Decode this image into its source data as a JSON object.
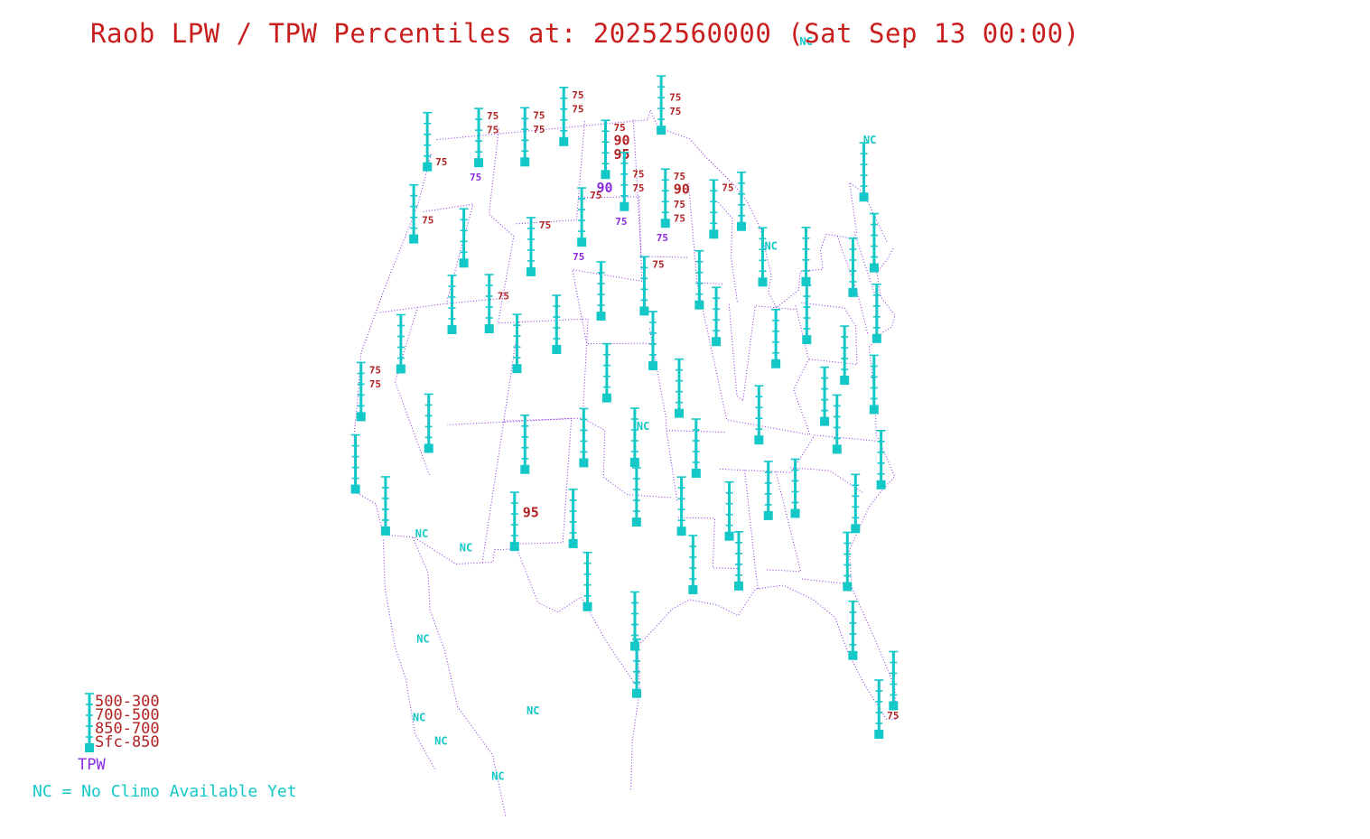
{
  "title": "Raob LPW / TPW Percentiles at: 20252560000 (Sat Sep 13 00:00)",
  "colors": {
    "title": "#c81e1e",
    "station": "#14c8c8",
    "pct": "#b22222",
    "tpw": "#8a2be2",
    "boundary": "#8a2be2"
  },
  "legend": {
    "layers": [
      "500-300",
      "700-500",
      "850-700",
      "Sfc-850"
    ],
    "tpw": "TPW",
    "note": "NC = No Climo Available Yet"
  },
  "stations": [
    {
      "name": "station-quillayute",
      "lat": 47.9,
      "lon": -124.6,
      "labels": [
        {
          "layer": 3,
          "text": "75"
        }
      ]
    },
    {
      "name": "station-salem",
      "lat": 44.9,
      "lon": -123.0,
      "labels": [
        {
          "layer": 2,
          "text": "75"
        }
      ]
    },
    {
      "name": "station-spokane",
      "lat": 47.7,
      "lon": -117.6,
      "labels": [
        {
          "layer": 0,
          "text": "75"
        },
        {
          "layer": 1,
          "text": "75"
        }
      ],
      "tpw": "75"
    },
    {
      "name": "station-boise",
      "lat": 43.6,
      "lon": -116.2,
      "labels": []
    },
    {
      "name": "station-reno",
      "lat": 39.5,
      "lon": -119.8,
      "labels": []
    },
    {
      "name": "station-oakland",
      "lat": 37.7,
      "lon": -122.2,
      "labels": [
        {
          "layer": 0,
          "text": "75"
        },
        {
          "layer": 1,
          "text": "75"
        }
      ]
    },
    {
      "name": "station-vandenberg",
      "lat": 34.7,
      "lon": -120.6,
      "labels": []
    },
    {
      "name": "station-las-vegas",
      "lat": 36.1,
      "lon": -115.2,
      "labels": []
    },
    {
      "name": "station-san-diego",
      "lat": 32.85,
      "lon": -117.1,
      "labels": []
    },
    {
      "name": "station-great-falls",
      "lat": 47.5,
      "lon": -111.4,
      "labels": [
        {
          "layer": 0,
          "text": "75"
        },
        {
          "layer": 1,
          "text": "75"
        }
      ]
    },
    {
      "name": "station-elko",
      "lat": 40.9,
      "lon": -115.7,
      "labels": []
    },
    {
      "name": "station-salt-lake",
      "lat": 40.8,
      "lon": -111.9,
      "labels": [
        {
          "layer": 1,
          "text": "75"
        }
      ]
    },
    {
      "name": "station-riverton",
      "lat": 43.0,
      "lon": -108.5,
      "labels": [
        {
          "layer": 0,
          "text": "75"
        }
      ]
    },
    {
      "name": "station-grand-junction",
      "lat": 39.1,
      "lon": -108.5,
      "labels": []
    },
    {
      "name": "station-glasgow",
      "lat": 48.2,
      "lon": -106.6,
      "labels": [
        {
          "layer": 0,
          "text": "75"
        },
        {
          "layer": 1,
          "text": "75"
        }
      ]
    },
    {
      "name": "station-bismarck",
      "lat": 46.8,
      "lon": -100.8,
      "labels": [
        {
          "layer": 0,
          "text": "75"
        },
        {
          "layer": 1,
          "text": "90",
          "big": true
        },
        {
          "layer": 2,
          "text": "95",
          "big": true
        }
      ],
      "tpw": "90",
      "tpwBig": true
    },
    {
      "name": "station-rapid-city",
      "lat": 44.1,
      "lon": -103.2,
      "labels": [
        {
          "layer": 0,
          "text": "75"
        }
      ],
      "tpw": "75"
    },
    {
      "name": "station-aberdeen",
      "lat": 45.5,
      "lon": -98.4,
      "labels": [
        {
          "layer": 1,
          "text": "75"
        },
        {
          "layer": 2,
          "text": "75"
        }
      ],
      "tpw": "75"
    },
    {
      "name": "station-international-falls",
      "lat": 48.6,
      "lon": -93.4,
      "labels": [
        {
          "layer": 1,
          "text": "75"
        },
        {
          "layer": 2,
          "text": "75"
        }
      ]
    },
    {
      "name": "station-chanhassen",
      "lat": 44.85,
      "lon": -93.6,
      "labels": [
        {
          "layer": 0,
          "text": "75"
        },
        {
          "layer": 1,
          "text": "90",
          "big": true
        },
        {
          "layer": 2,
          "text": "75"
        },
        {
          "layer": 3,
          "text": "75"
        }
      ],
      "tpw": "75"
    },
    {
      "name": "station-north-platte",
      "lat": 41.1,
      "lon": -100.7,
      "labels": []
    },
    {
      "name": "station-omaha",
      "lat": 41.3,
      "lon": -96.3,
      "labels": [
        {
          "layer": 0,
          "text": "75"
        }
      ]
    },
    {
      "name": "station-topeka",
      "lat": 39.1,
      "lon": -95.6,
      "labels": []
    },
    {
      "name": "station-dodge-city",
      "lat": 37.8,
      "lon": -99.9,
      "labels": []
    },
    {
      "name": "station-denver",
      "lat": 39.8,
      "lon": -104.9,
      "labels": []
    },
    {
      "name": "station-albuquerque",
      "lat": 35.0,
      "lon": -106.6,
      "labels": []
    },
    {
      "name": "station-amarillo",
      "lat": 35.2,
      "lon": -101.7,
      "labels": []
    },
    {
      "name": "station-norman",
      "lat": 35.2,
      "lon": -97.4,
      "labels": [],
      "nc": true
    },
    {
      "name": "station-santa-teresa",
      "lat": 31.9,
      "lon": -106.7,
      "labels": [
        {
          "layer": 1,
          "text": "95",
          "big": true
        }
      ]
    },
    {
      "name": "station-midland",
      "lat": 31.95,
      "lon": -102.2,
      "labels": []
    },
    {
      "name": "station-fort-worth",
      "lat": 32.8,
      "lon": -97.3,
      "labels": []
    },
    {
      "name": "station-del-rio",
      "lat": 29.4,
      "lon": -100.9,
      "labels": []
    },
    {
      "name": "station-corpus-christi",
      "lat": 27.8,
      "lon": -97.5,
      "labels": []
    },
    {
      "name": "station-brownsville",
      "lat": 25.9,
      "lon": -97.4,
      "labels": []
    },
    {
      "name": "station-shreveport",
      "lat": 32.45,
      "lon": -93.8,
      "labels": []
    },
    {
      "name": "station-lake-charles",
      "lat": 30.1,
      "lon": -93.2,
      "labels": []
    },
    {
      "name": "station-springfield",
      "lat": 37.2,
      "lon": -93.4,
      "labels": []
    },
    {
      "name": "station-little-rock",
      "lat": 34.8,
      "lon": -92.3,
      "labels": []
    },
    {
      "name": "station-jackson",
      "lat": 32.3,
      "lon": -90.1,
      "labels": []
    },
    {
      "name": "station-slidell",
      "lat": 30.3,
      "lon": -89.8,
      "labels": []
    },
    {
      "name": "station-davenport",
      "lat": 41.6,
      "lon": -90.6,
      "labels": []
    },
    {
      "name": "station-lincoln",
      "lat": 40.15,
      "lon": -89.3,
      "labels": []
    },
    {
      "name": "station-green-bay",
      "lat": 44.5,
      "lon": -88.1,
      "labels": [
        {
          "layer": 0,
          "text": "75"
        }
      ]
    },
    {
      "name": "station-gaylord",
      "lat": 44.9,
      "lon": -84.7,
      "labels": []
    },
    {
      "name": "station-detroit",
      "lat": 42.7,
      "lon": -83.5,
      "labels": [],
      "nc": true
    },
    {
      "name": "station-wilmington-oh",
      "lat": 39.4,
      "lon": -83.8,
      "labels": []
    },
    {
      "name": "station-nashville",
      "lat": 36.25,
      "lon": -86.6,
      "labels": []
    },
    {
      "name": "station-birmingham",
      "lat": 33.2,
      "lon": -86.8,
      "labels": []
    },
    {
      "name": "station-peachtree-city",
      "lat": 33.35,
      "lon": -84.6,
      "labels": []
    },
    {
      "name": "station-buffalo",
      "lat": 42.9,
      "lon": -78.7,
      "labels": []
    },
    {
      "name": "station-pittsburgh",
      "lat": 40.5,
      "lon": -80.2,
      "labels": []
    },
    {
      "name": "station-albany",
      "lat": 42.7,
      "lon": -73.8,
      "labels": []
    },
    {
      "name": "station-upton",
      "lat": 40.9,
      "lon": -72.9,
      "labels": []
    },
    {
      "name": "station-gray",
      "lat": 43.9,
      "lon": -70.3,
      "labels": []
    },
    {
      "name": "station-caribou",
      "lat": 46.9,
      "lon": -68.0,
      "labels": []
    },
    {
      "name": "station-sterling",
      "lat": 38.98,
      "lon": -77.5,
      "labels": []
    },
    {
      "name": "station-wallops",
      "lat": 37.9,
      "lon": -75.5,
      "labels": []
    },
    {
      "name": "station-blacksburg",
      "lat": 37.2,
      "lon": -80.4,
      "labels": []
    },
    {
      "name": "station-greensboro",
      "lat": 36.1,
      "lon": -79.9,
      "labels": []
    },
    {
      "name": "station-newport",
      "lat": 34.8,
      "lon": -76.9,
      "labels": []
    },
    {
      "name": "station-charleston",
      "lat": 32.9,
      "lon": -80.0,
      "labels": []
    },
    {
      "name": "station-jacksonville",
      "lat": 30.5,
      "lon": -81.7,
      "labels": []
    },
    {
      "name": "station-tampa",
      "lat": 27.7,
      "lon": -82.4,
      "labels": []
    },
    {
      "name": "station-miami",
      "lat": 25.75,
      "lon": -80.4,
      "labels": []
    },
    {
      "name": "station-key-west",
      "lat": 24.55,
      "lon": -81.8,
      "labels": [
        {
          "layer": 2,
          "text": "75"
        }
      ]
    }
  ],
  "nc_labels": [
    {
      "lat": 53.0,
      "lon": -68.3
    },
    {
      "lat": 49.3,
      "lon": -64.6
    },
    {
      "lat": 32.5,
      "lon": -114.6
    },
    {
      "lat": 31.8,
      "lon": -110.9
    },
    {
      "lat": 28.2,
      "lon": -112.8
    },
    {
      "lat": 25.1,
      "lon": -104.6
    },
    {
      "lat": 25.0,
      "lon": -112.0
    },
    {
      "lat": 24.0,
      "lon": -110.3
    },
    {
      "lat": 22.5,
      "lon": -106.4
    }
  ]
}
